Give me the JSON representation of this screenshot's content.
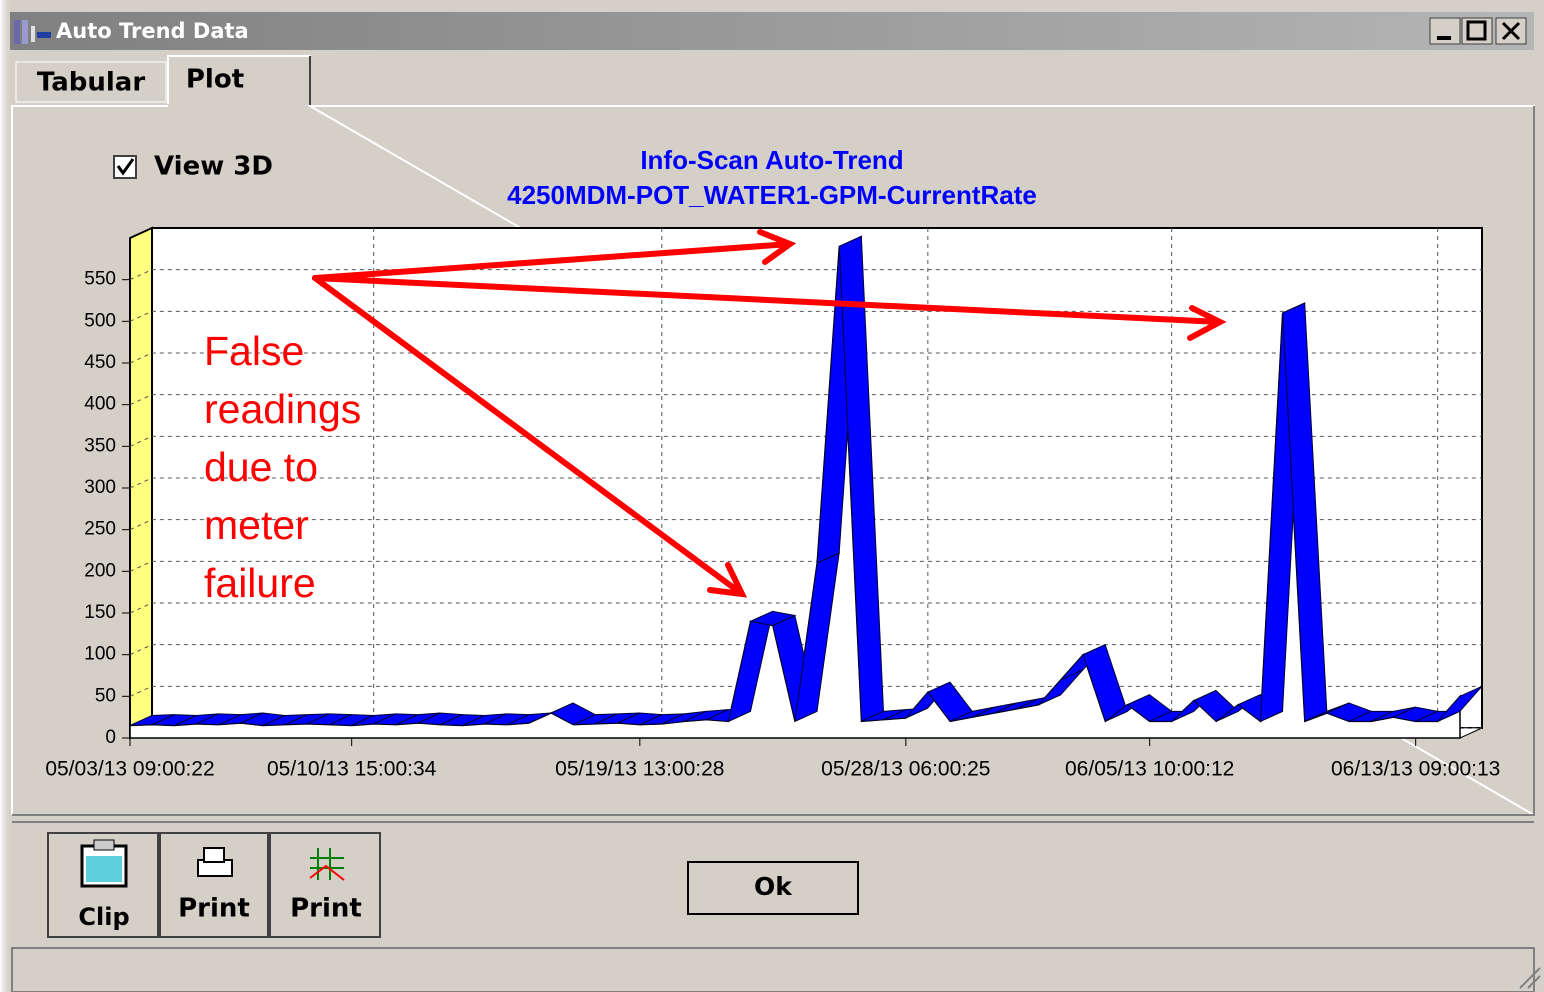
{
  "window": {
    "title": "Auto Trend Data"
  },
  "tabs": [
    "Tabular",
    "Plot"
  ],
  "checkbox": {
    "label": "View 3D",
    "checked": true
  },
  "chart_data": {
    "type": "area3d",
    "title": "Info-Scan Auto-Trend",
    "subtitle": "4250MDM-POT_WATER1-GPM-CurrentRate",
    "annotation": "False readings due to meter failure",
    "categories": [
      "05/03/13 09:00:22",
      null,
      null,
      null,
      null,
      null,
      null,
      null,
      null,
      null,
      "05/10/13 15:00:34",
      null,
      null,
      null,
      null,
      null,
      null,
      null,
      null,
      null,
      null,
      null,
      null,
      "05/19/13 13:00:28",
      null,
      null,
      null,
      null,
      null,
      null,
      null,
      null,
      null,
      null,
      null,
      "05/28/13 06:00:25",
      null,
      null,
      null,
      null,
      null,
      null,
      null,
      null,
      null,
      null,
      "06/05/13 10:00:12",
      null,
      null,
      null,
      null,
      null,
      null,
      null,
      null,
      null,
      null,
      null,
      "06/13/13 09:00:13",
      null,
      null
    ],
    "series": [
      {
        "name": "CurrentRate",
        "color": "#0000ff",
        "values": [
          15,
          16,
          15,
          17,
          16,
          18,
          15,
          16,
          17,
          16,
          15,
          17,
          16,
          18,
          16,
          15,
          17,
          16,
          18,
          30,
          16,
          17,
          18,
          16,
          17,
          20,
          22,
          20,
          140,
          135,
          20,
          210,
          590,
          20,
          22,
          24,
          55,
          20,
          25,
          30,
          35,
          40,
          70,
          100,
          20,
          40,
          20,
          20,
          45,
          20,
          40,
          20,
          510,
          20,
          30,
          20,
          20,
          25,
          20,
          20,
          50
        ]
      }
    ],
    "ylim": [
      0,
      600
    ],
    "yticks": [
      0,
      50,
      100,
      150,
      200,
      250,
      300,
      350,
      400,
      450,
      500,
      550
    ],
    "grid": true
  },
  "buttons": [
    "Clip",
    "Print",
    "Print"
  ],
  "ok_button": "Ok"
}
